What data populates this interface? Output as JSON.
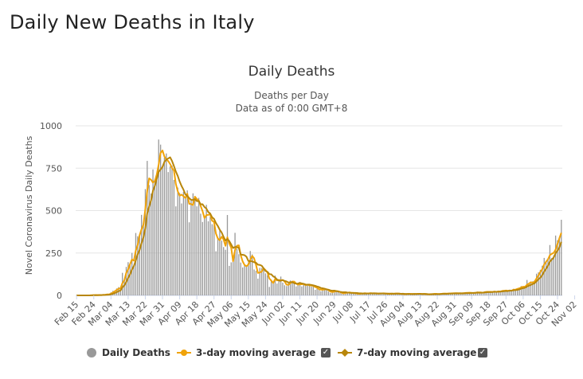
{
  "page": {
    "title": "Daily New Deaths in Italy"
  },
  "chart_data": {
    "type": "bar",
    "title": "Daily Deaths",
    "subtitle": "Deaths per Day",
    "subtitle2": "Data as of 0:00 GMT+8",
    "ylabel": "Novel Coronavirus Daily Deaths",
    "xlabel": "",
    "ylim": [
      0,
      1000
    ],
    "yticks": [
      0,
      250,
      500,
      750,
      1000
    ],
    "grid": true,
    "legend_position": "bottom",
    "x_tick_labels": [
      "Feb 15",
      "Feb 24",
      "Mar 04",
      "Mar 13",
      "Mar 22",
      "Mar 31",
      "Apr 09",
      "Apr 18",
      "Apr 27",
      "May 06",
      "May 15",
      "May 24",
      "Jun 02",
      "Jun 11",
      "Jun 20",
      "Jun 29",
      "Jul 08",
      "Jul 17",
      "Jul 26",
      "Aug 04",
      "Aug 13",
      "Aug 22",
      "Aug 31",
      "Sep 09",
      "Sep 18",
      "Sep 27",
      "Oct 06",
      "Oct 15",
      "Oct 24",
      "Nov 02"
    ],
    "series": [
      {
        "name": "Daily Deaths",
        "color": "#999999",
        "kind": "bar"
      },
      {
        "name": "3-day moving average",
        "color": "#f0a30a",
        "kind": "line"
      },
      {
        "name": "7-day moving average",
        "color": "#b8860b",
        "kind": "line"
      }
    ],
    "start_date": "Feb 15",
    "values": [
      0,
      0,
      0,
      0,
      0,
      0,
      0,
      1,
      2,
      3,
      2,
      1,
      4,
      1,
      5,
      4,
      8,
      5,
      18,
      27,
      28,
      41,
      49,
      36,
      133,
      97,
      168,
      196,
      189,
      250,
      175,
      368,
      349,
      345,
      475,
      427,
      627,
      793,
      651,
      601,
      743,
      683,
      712,
      919,
      889,
      756,
      812,
      837,
      727,
      760,
      766,
      681,
      525,
      636,
      604,
      542,
      610,
      570,
      619,
      431,
      566,
      602,
      578,
      525,
      575,
      482,
      433,
      454,
      534,
      437,
      464,
      420,
      415,
      260,
      333,
      382,
      323,
      285,
      269,
      474,
      174,
      195,
      236,
      369,
      274,
      243,
      194,
      165,
      179,
      172,
      195,
      262,
      242,
      153,
      145,
      99,
      162,
      161,
      156,
      130,
      119,
      50,
      92,
      78,
      117,
      70,
      87,
      111,
      75,
      60,
      55,
      71,
      88,
      85,
      72,
      53,
      65,
      79,
      53,
      71,
      56,
      65,
      57,
      52,
      62,
      33,
      43,
      34,
      25,
      42,
      38,
      30,
      23,
      15,
      21,
      30,
      24,
      20,
      14,
      11,
      12,
      21,
      15,
      17,
      13,
      14,
      11,
      9,
      8,
      15,
      10,
      14,
      12,
      10,
      16,
      9,
      13,
      11,
      8,
      14,
      13,
      10,
      9,
      11,
      7,
      12,
      10,
      12,
      11,
      9,
      6,
      10,
      5,
      8,
      13,
      6,
      7,
      11,
      9,
      8,
      12,
      5,
      9,
      7,
      4,
      6,
      9,
      11,
      8,
      7,
      10,
      9,
      12,
      11,
      8,
      15,
      12,
      10,
      16,
      13,
      9,
      14,
      14,
      12,
      18,
      16,
      13,
      15,
      14,
      17,
      22,
      14,
      16,
      18,
      24,
      21,
      19,
      23,
      20,
      25,
      17,
      28,
      22,
      29,
      31,
      27,
      24,
      34,
      28,
      39,
      36,
      41,
      47,
      55,
      51,
      47,
      91,
      69,
      73,
      83,
      89,
      128,
      136,
      151,
      175,
      221,
      199,
      217,
      297,
      221,
      235,
      353,
      325,
      336,
      446
    ]
  },
  "legend": {
    "items": [
      {
        "label": "Daily Deaths"
      },
      {
        "label": "3-day moving average"
      },
      {
        "label": "7-day moving average"
      }
    ],
    "checkbox_mark": "✓"
  }
}
